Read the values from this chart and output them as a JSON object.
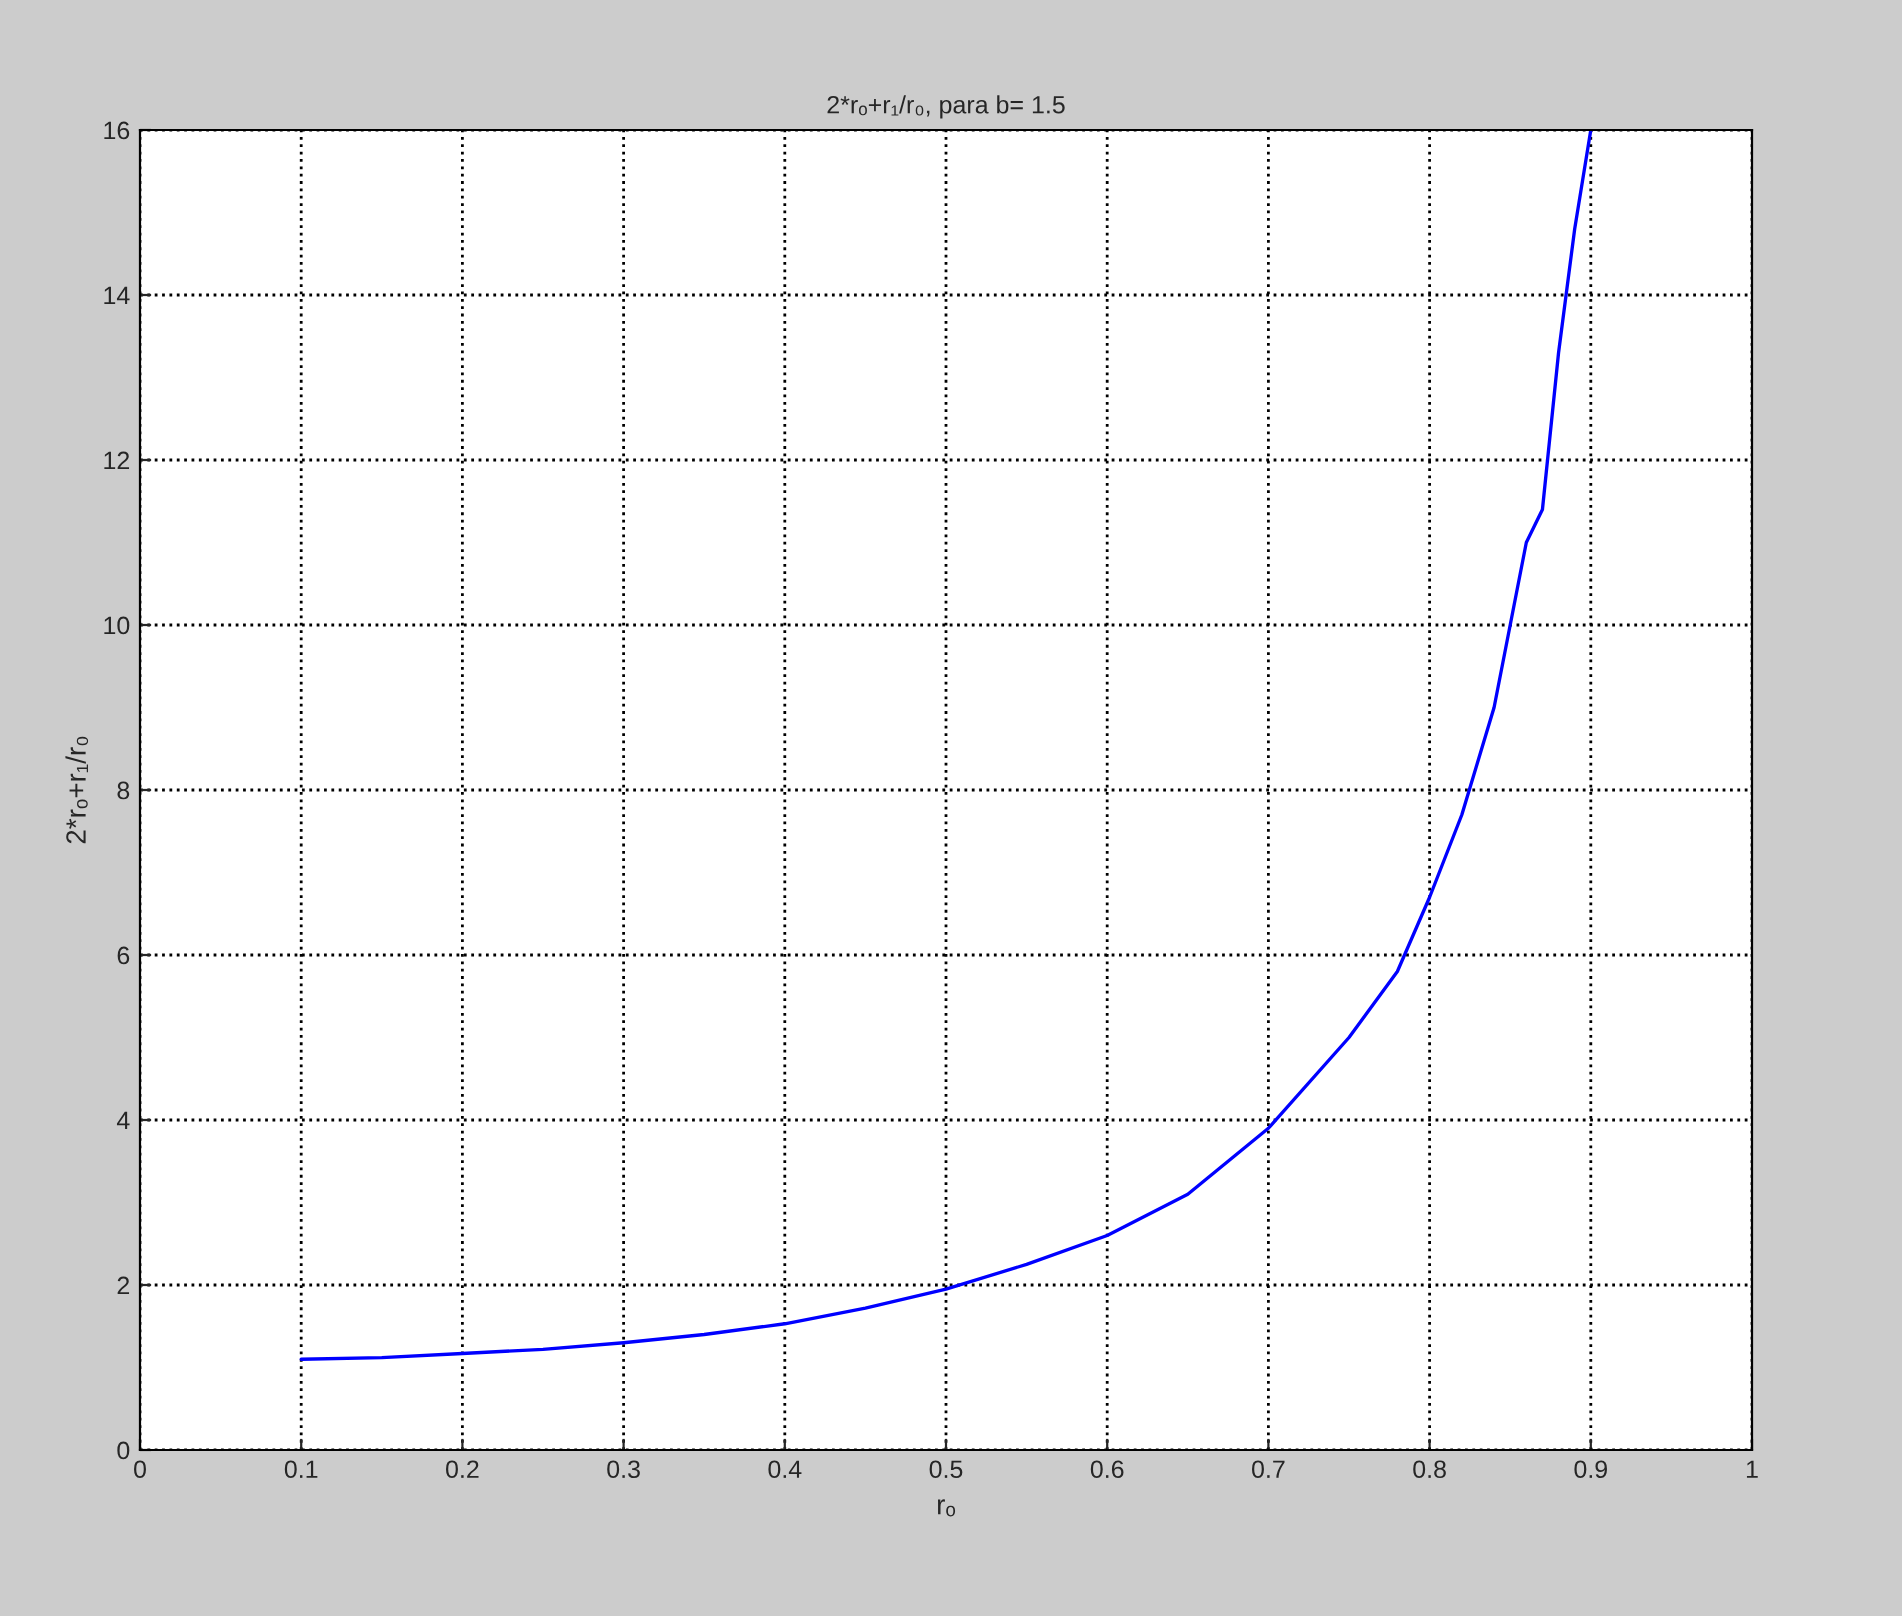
{
  "chart_data": {
    "type": "line",
    "title": "2*rₒ+r₁/r₀, para b= 1.5",
    "xlabel": "rₒ",
    "ylabel": "2*rₒ+r₁/r₀",
    "x": [
      0.1,
      0.15,
      0.2,
      0.25,
      0.3,
      0.35,
      0.4,
      0.45,
      0.5,
      0.55,
      0.6,
      0.65,
      0.7,
      0.75,
      0.78,
      0.8,
      0.82,
      0.84,
      0.85,
      0.86,
      0.87,
      0.88,
      0.89,
      0.9
    ],
    "series": [
      {
        "color": "#0000ff",
        "values": [
          1.1,
          1.12,
          1.17,
          1.22,
          1.3,
          1.4,
          1.53,
          1.72,
          1.95,
          2.25,
          2.6,
          3.1,
          3.9,
          5.0,
          5.8,
          6.7,
          7.7,
          9.0,
          10.0,
          11.0,
          11.4,
          13.3,
          14.8,
          16.0
        ]
      }
    ],
    "xlim": [
      0,
      1
    ],
    "ylim": [
      0,
      16
    ],
    "xticks": [
      0,
      0.1,
      0.2,
      0.3,
      0.4,
      0.5,
      0.6,
      0.7,
      0.8,
      0.9,
      1
    ],
    "yticks": [
      0,
      2,
      4,
      6,
      8,
      10,
      12,
      14,
      16
    ],
    "grid": true,
    "legend": false,
    "line_style": "solid",
    "marker": "none"
  }
}
